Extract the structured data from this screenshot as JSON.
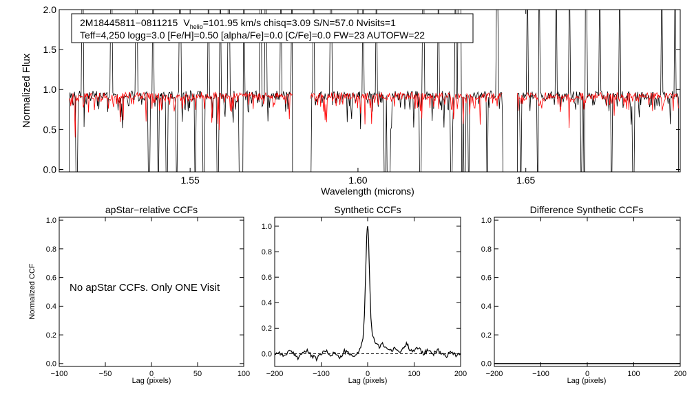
{
  "chart_data": [
    {
      "type": "line",
      "id": "spectrum",
      "xlabel": "Wavelength (microns)",
      "ylabel": "Normalized Flux",
      "xlim": [
        1.511,
        1.696
      ],
      "ylim": [
        -0.03,
        2.0
      ],
      "xticks": [
        1.55,
        1.6,
        1.65
      ],
      "xtick_labels": [
        "1.55",
        "1.60",
        "1.65"
      ],
      "yticks": [
        0.0,
        0.5,
        1.0,
        1.5,
        2.0
      ],
      "ytick_labels": [
        "0.0",
        "0.5",
        "1.0",
        "1.5",
        "2.0"
      ],
      "info_box": {
        "line1_id": "2M18445811−0811215",
        "line1_v": "V",
        "line1_v_sub": "helio",
        "line1_rest": "=101.95 km/s  chisq=3.09  S/N=57.0  Nvisits=1",
        "line2": "Teff=4,250 logg=3.0 [Fe/H]=0.50 [alpha/Fe]=0.0 [C/Fe]=0.0 FW=23 AUTOFW=22"
      },
      "chips": [
        [
          1.514,
          1.5805
        ],
        [
          1.5858,
          1.6432
        ],
        [
          1.6475,
          1.6955
        ]
      ],
      "series": [
        {
          "name": "observed",
          "color": "#000000",
          "continuum": 0.93,
          "noise": 0.055
        },
        {
          "name": "synthetic",
          "color": "#ff0000",
          "continuum": 0.92,
          "noise": 0.045
        }
      ],
      "spikes_up": [
        1.5125,
        1.518,
        1.5265,
        1.534,
        1.539,
        1.547,
        1.5555,
        1.559,
        1.5615,
        1.566,
        1.571,
        1.5725,
        1.577,
        1.5803,
        1.5868,
        1.592,
        1.6015,
        1.6055,
        1.6195,
        1.624,
        1.629,
        1.63,
        1.6305,
        1.6415,
        1.6505,
        1.654,
        1.659,
        1.663,
        1.668,
        1.672,
        1.678,
        1.6905,
        1.6945
      ],
      "dips_down": [
        1.5128,
        1.5162,
        1.5378,
        1.5405,
        1.543,
        1.546,
        1.5515,
        1.554,
        1.5582,
        1.5648,
        1.5655,
        1.5858,
        1.608,
        1.6088,
        1.6093,
        1.6186,
        1.6278,
        1.631,
        1.6318,
        1.633,
        1.6385,
        1.6485,
        1.6535,
        1.659,
        1.6665,
        1.6675,
        1.6755,
        1.682,
        1.6945
      ]
    },
    {
      "type": "line",
      "id": "apstar",
      "title": "apStar−relative CCFs",
      "xlabel": "Lag (pixels)",
      "ylabel": "Normalized CCF",
      "xlim": [
        -100,
        100
      ],
      "ylim": [
        -0.02,
        1.02
      ],
      "xticks": [
        -100,
        -50,
        0,
        50,
        100
      ],
      "xtick_labels": [
        "−100",
        "−50",
        "0",
        "50",
        "100"
      ],
      "yticks": [
        0.0,
        0.2,
        0.4,
        0.6,
        0.8,
        1.0
      ],
      "ytick_labels": [
        "0.0",
        "0.2",
        "0.4",
        "0.6",
        "0.8",
        "1.0"
      ],
      "annotation": "No apStar CCFs.  Only ONE Visit",
      "series": []
    },
    {
      "type": "line",
      "id": "synthetic",
      "title": "Synthetic CCFs",
      "xlabel": "Lag (pixels)",
      "xlim": [
        -200,
        200
      ],
      "ylim": [
        -0.1,
        1.07
      ],
      "xticks": [
        -200,
        -100,
        0,
        100,
        200
      ],
      "xtick_labels": [
        "−200",
        "−100",
        "0",
        "100",
        "200"
      ],
      "yticks": [
        0.0,
        0.2,
        0.4,
        0.6,
        0.8,
        1.0
      ],
      "ytick_labels": [
        "0.0",
        "0.2",
        "0.4",
        "0.6",
        "0.8",
        "1.0"
      ],
      "baseline": 0.0,
      "series": [
        {
          "name": "ccf",
          "color": "#000000",
          "x": [
            -200,
            -190,
            -180,
            -170,
            -160,
            -150,
            -140,
            -130,
            -120,
            -110,
            -100,
            -90,
            -80,
            -70,
            -60,
            -50,
            -40,
            -30,
            -20,
            -15,
            -10,
            -7,
            -5,
            -3,
            -2,
            -1,
            0,
            1,
            2,
            3,
            5,
            7,
            10,
            15,
            20,
            25,
            30,
            40,
            50,
            60,
            70,
            80,
            85,
            90,
            100,
            110,
            120,
            130,
            140,
            150,
            160,
            170,
            180,
            190,
            200
          ],
          "values": [
            0.0,
            0.01,
            -0.02,
            0.02,
            0.0,
            -0.03,
            0.01,
            0.02,
            -0.02,
            -0.04,
            0.0,
            0.02,
            -0.01,
            0.01,
            -0.04,
            0.02,
            0.0,
            -0.03,
            0.02,
            0.05,
            0.12,
            0.3,
            0.55,
            0.8,
            0.92,
            0.98,
            1.0,
            0.97,
            0.9,
            0.75,
            0.5,
            0.28,
            0.15,
            0.1,
            0.07,
            0.05,
            0.08,
            0.05,
            0.02,
            0.04,
            0.01,
            0.06,
            0.08,
            0.04,
            0.02,
            0.05,
            0.0,
            0.03,
            -0.01,
            0.03,
            0.0,
            -0.02,
            0.02,
            -0.01,
            0.0
          ]
        }
      ]
    },
    {
      "type": "line",
      "id": "difference",
      "title": "Difference Synthetic CCFs",
      "xlabel": "Lag (pixels)",
      "xlim": [
        -200,
        200
      ],
      "ylim": [
        -0.02,
        1.02
      ],
      "xticks": [
        -200,
        -100,
        0,
        100,
        200
      ],
      "xtick_labels": [
        "−200",
        "−100",
        "0",
        "100",
        "200"
      ],
      "yticks": [
        0.0,
        0.2,
        0.4,
        0.6,
        0.8,
        1.0
      ],
      "ytick_labels": [
        "0.0",
        "0.2",
        "0.4",
        "0.6",
        "0.8",
        "1.0"
      ],
      "series": [
        {
          "name": "diff",
          "color": "#000000",
          "x": [
            -200,
            200
          ],
          "values": [
            0.0,
            0.0
          ]
        }
      ]
    }
  ]
}
